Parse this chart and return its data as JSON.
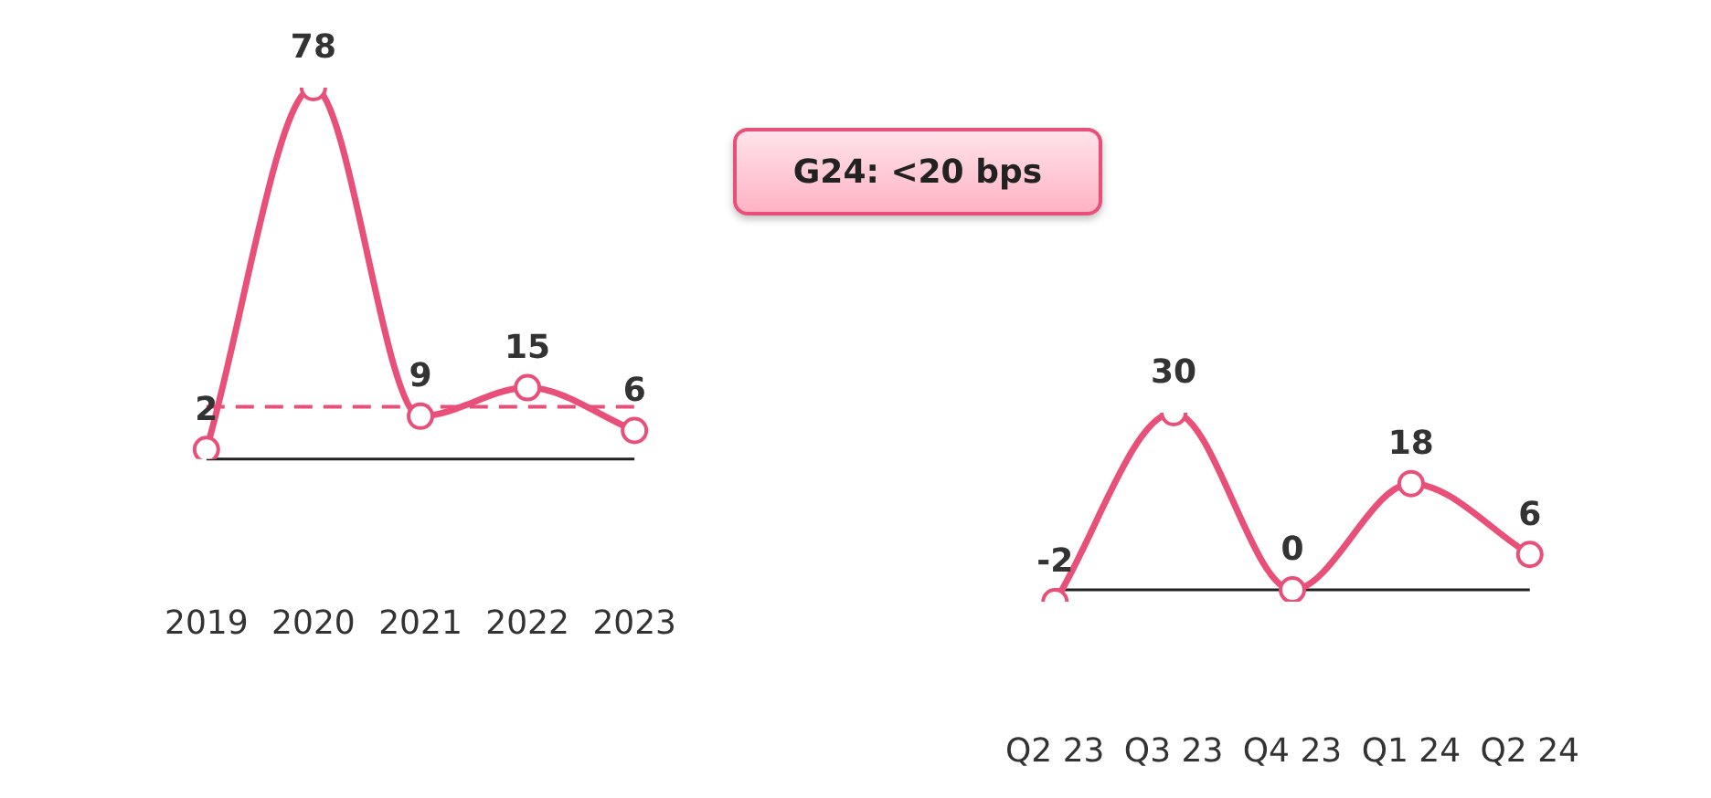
{
  "chart_data": [
    {
      "type": "line",
      "categories": [
        "2019",
        "2020",
        "2021",
        "2022",
        "2023"
      ],
      "series": [
        {
          "color": "#e8507a",
          "values": [
            2,
            78,
            9,
            15,
            6
          ]
        }
      ],
      "tick_labels": "x",
      "data_labels": true,
      "marker": "circle",
      "grid": false,
      "legend": false,
      "ref_lines": [
        {
          "axis": "y",
          "value": 0,
          "color": "#222222",
          "line_style": "solid"
        },
        {
          "axis": "y",
          "value": 11,
          "color": "#e8507a",
          "line_style": "dashed"
        }
      ],
      "annotations": [
        "G24: <20 bps"
      ]
    },
    {
      "type": "line",
      "categories": [
        "Q2 23",
        "Q3 23",
        "Q4 23",
        "Q1 24",
        "Q2 24"
      ],
      "series": [
        {
          "color": "#e8507a",
          "values": [
            -2,
            30,
            0,
            18,
            6
          ]
        }
      ],
      "tick_labels": "x",
      "data_labels": true,
      "marker": "circle",
      "grid": false,
      "legend": false,
      "ref_lines": [
        {
          "axis": "y",
          "value": 0,
          "color": "#222222",
          "line_style": "solid"
        }
      ]
    }
  ]
}
